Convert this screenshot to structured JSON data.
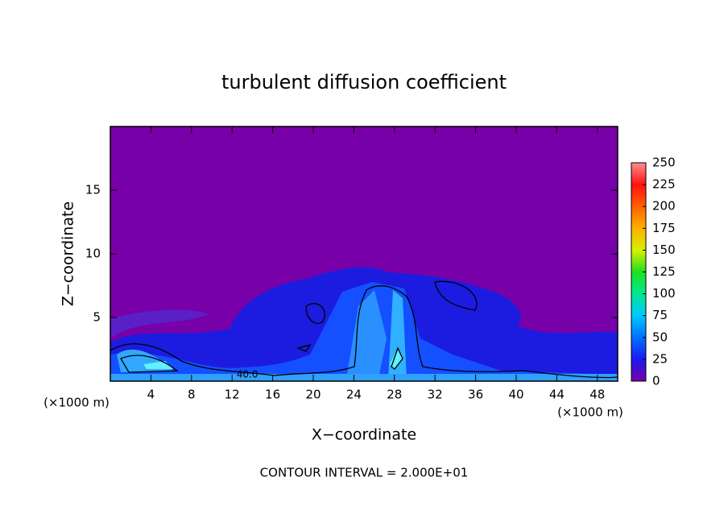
{
  "chart_data": {
    "type": "contour",
    "title": "turbulent diffusion coefficient",
    "xlabel": "X−coordinate",
    "ylabel": "Z−coordinate",
    "x_unit": "(×1000 m)",
    "note": "CONTOUR INTERVAL = 2.000E+01",
    "contour_labels": [
      {
        "text": "40.0",
        "x": 13.5,
        "z": 0.5
      }
    ],
    "xlim": [
      0,
      50
    ],
    "xticks": [
      4,
      8,
      12,
      16,
      20,
      24,
      28,
      32,
      36,
      40,
      44,
      48
    ],
    "ylim": [
      0,
      20
    ],
    "yticks": [
      5,
      10,
      15
    ],
    "colorbar": {
      "lim": [
        0,
        250
      ],
      "ticks": [
        0,
        25,
        50,
        75,
        100,
        125,
        150,
        175,
        200,
        225,
        250
      ],
      "colors": [
        "#7a00a8",
        "#1a1af0",
        "#0070ff",
        "#00c8ff",
        "#00e890",
        "#20e020",
        "#d8f000",
        "#ffb000",
        "#ff6000",
        "#ff1010",
        "#ff9090"
      ]
    }
  }
}
